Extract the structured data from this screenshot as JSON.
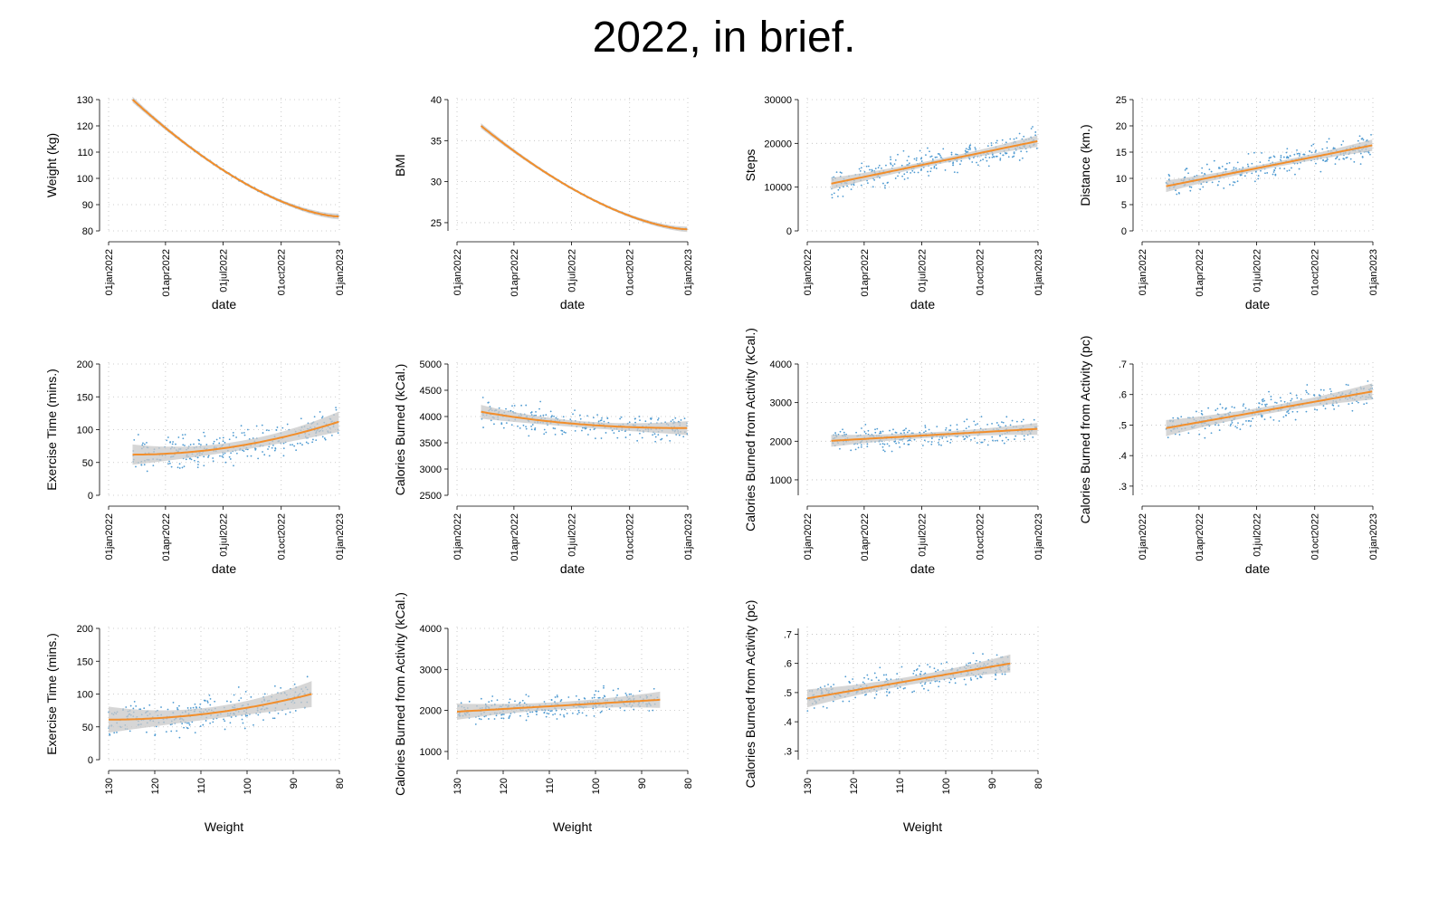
{
  "title": "2022, in brief.",
  "colors": {
    "fit": "#f28e2b",
    "points": "#4e9ad1",
    "band": "#c8c8c8",
    "grid": "#bdbdbd",
    "axis": "#000000"
  },
  "chart_data": [
    {
      "type": "scatter",
      "ylabel": "Weight (kg)",
      "xlabel": "date",
      "xaxis": "date",
      "xlim": [
        "2022-01-01",
        "2023-01-01"
      ],
      "ylim": [
        80,
        130
      ],
      "xticks": [
        "01jan2022",
        "01apr2022",
        "01jul2022",
        "01oct2022",
        "01jan2023"
      ],
      "yticks": [
        "80",
        "90",
        "100",
        "110",
        "120",
        "130"
      ],
      "x_start": "2022-02-08",
      "x_end": "2022-12-31",
      "y_start": 130,
      "y_end": 85.5,
      "trend": "decay",
      "spread": 0.8,
      "points": "line",
      "band": 0.5,
      "grid": true
    },
    {
      "type": "scatter",
      "ylabel": "BMI",
      "xlabel": "date",
      "xaxis": "date",
      "xlim": [
        "2022-01-01",
        "2023-01-01"
      ],
      "ylim": [
        24,
        40
      ],
      "xticks": [
        "01jan2022",
        "01apr2022",
        "01jul2022",
        "01oct2022",
        "01jan2023"
      ],
      "yticks": [
        "25",
        "30",
        "35",
        "40"
      ],
      "x_start": "2022-02-08",
      "x_end": "2022-12-31",
      "y_start": 36.8,
      "y_end": 24.2,
      "trend": "decay",
      "spread": 0.2,
      "points": "line",
      "band": 0.15,
      "grid": true
    },
    {
      "type": "scatter",
      "ylabel": "Steps",
      "xlabel": "date",
      "xaxis": "date",
      "xlim": [
        "2022-01-01",
        "2023-01-01"
      ],
      "ylim": [
        0,
        30000
      ],
      "xticks": [
        "01jan2022",
        "01apr2022",
        "01jul2022",
        "01oct2022",
        "01jan2023"
      ],
      "yticks": [
        "0",
        "10000",
        "20000",
        "30000"
      ],
      "x_start": "2022-02-08",
      "x_end": "2022-12-31",
      "y_start": 10800,
      "y_end": 20500,
      "trend": "linear",
      "spread": 4000,
      "points": "scatter",
      "band": 600,
      "grid": true
    },
    {
      "type": "scatter",
      "ylabel": "Distance (km.)",
      "xlabel": "date",
      "xaxis": "date",
      "xlim": [
        "2022-01-01",
        "2023-01-01"
      ],
      "ylim": [
        0,
        25
      ],
      "xticks": [
        "01jan2022",
        "01apr2022",
        "01jul2022",
        "01oct2022",
        "01jan2023"
      ],
      "yticks": [
        "0",
        "5",
        "10",
        "15",
        "20",
        "25"
      ],
      "x_start": "2022-02-08",
      "x_end": "2022-12-31",
      "y_start": 8.5,
      "y_end": 16.3,
      "trend": "linear",
      "spread": 3.2,
      "points": "scatter",
      "band": 0.5,
      "grid": true
    },
    {
      "type": "scatter",
      "ylabel": "Exercise Time (mins.)",
      "xlabel": "date",
      "xaxis": "date",
      "xlim": [
        "2022-01-01",
        "2023-01-01"
      ],
      "ylim": [
        0,
        200
      ],
      "xticks": [
        "01jan2022",
        "01apr2022",
        "01jul2022",
        "01oct2022",
        "01jan2023"
      ],
      "yticks": [
        "0",
        "50",
        "100",
        "150",
        "200"
      ],
      "x_start": "2022-02-08",
      "x_end": "2022-12-31",
      "y_start": 62,
      "y_end": 112,
      "trend": "convex",
      "spread": 32,
      "points": "scatter",
      "band": 7,
      "grid": true
    },
    {
      "type": "scatter",
      "ylabel": "Calories Burned (kCal.)",
      "xlabel": "date",
      "xaxis": "date",
      "xlim": [
        "2022-01-01",
        "2023-01-01"
      ],
      "ylim": [
        2500,
        5000
      ],
      "xticks": [
        "01jan2022",
        "01apr2022",
        "01jul2022",
        "01oct2022",
        "01jan2023"
      ],
      "yticks": [
        "2500",
        "3000",
        "3500",
        "4000",
        "4500",
        "5000"
      ],
      "x_start": "2022-02-08",
      "x_end": "2022-12-31",
      "y_start": 4090,
      "y_end": 3780,
      "trend": "concave-down",
      "spread": 320,
      "points": "scatter",
      "band": 60,
      "grid": true
    },
    {
      "type": "scatter",
      "ylabel": "Calories Burned from Activity (kCal.)",
      "xlabel": "date",
      "xaxis": "date",
      "xlim": [
        "2022-01-01",
        "2023-01-01"
      ],
      "ylim": [
        600,
        4000
      ],
      "xticks": [
        "01jan2022",
        "01apr2022",
        "01jul2022",
        "01oct2022",
        "01jan2023"
      ],
      "yticks": [
        "1000",
        "2000",
        "3000",
        "4000"
      ],
      "x_start": "2022-02-08",
      "x_end": "2022-12-31",
      "y_start": 2010,
      "y_end": 2320,
      "trend": "linear",
      "spread": 380,
      "points": "scatter",
      "band": 70,
      "grid": true
    },
    {
      "type": "scatter",
      "ylabel": "Calories Burned from Activity (pc)",
      "xlabel": "date",
      "xaxis": "date",
      "xlim": [
        "2022-01-01",
        "2023-01-01"
      ],
      "ylim": [
        0.27,
        0.7
      ],
      "xticks": [
        "01jan2022",
        "01apr2022",
        "01jul2022",
        "01oct2022",
        "01jan2023"
      ],
      "yticks": [
        ".3",
        ".4",
        ".5",
        ".6",
        ".7"
      ],
      "x_start": "2022-02-08",
      "x_end": "2022-12-31",
      "y_start": 0.49,
      "y_end": 0.61,
      "trend": "linear",
      "spread": 0.055,
      "points": "scatter",
      "band": 0.012,
      "grid": true
    },
    {
      "type": "scatter",
      "ylabel": "Exercise Time (mins.)",
      "xlabel": "Weight",
      "xaxis": "reversed",
      "xlim": [
        130,
        80
      ],
      "ylim": [
        0,
        200
      ],
      "xticks": [
        "130",
        "120",
        "110",
        "100",
        "90",
        "80"
      ],
      "yticks": [
        "0",
        "50",
        "100",
        "150",
        "200"
      ],
      "x_start": 130,
      "x_end": 86,
      "y_start": 61,
      "y_end": 100,
      "trend": "convex",
      "spread": 32,
      "points": "scatter",
      "band": 9,
      "grid": true
    },
    {
      "type": "scatter",
      "ylabel": "Calories Burned from Activity (kCal.)",
      "xlabel": "Weight",
      "xaxis": "reversed",
      "xlim": [
        130,
        80
      ],
      "ylim": [
        800,
        4000
      ],
      "xticks": [
        "130",
        "120",
        "110",
        "100",
        "90",
        "80"
      ],
      "yticks": [
        "1000",
        "2000",
        "3000",
        "4000"
      ],
      "x_start": 130,
      "x_end": 86,
      "y_start": 1970,
      "y_end": 2260,
      "trend": "linear",
      "spread": 380,
      "points": "scatter",
      "band": 90,
      "grid": true
    },
    {
      "type": "scatter",
      "ylabel": "Calories Burned from Activity (pc)",
      "xlabel": "Weight",
      "xaxis": "reversed",
      "xlim": [
        130,
        80
      ],
      "ylim": [
        0.27,
        0.72
      ],
      "xticks": [
        "130",
        "120",
        "110",
        "100",
        "90",
        "80"
      ],
      "yticks": [
        ".3",
        ".4",
        ".5",
        ".6",
        ".7"
      ],
      "x_start": 130,
      "x_end": 86,
      "y_start": 0.48,
      "y_end": 0.6,
      "trend": "linear",
      "spread": 0.055,
      "points": "scatter",
      "band": 0.014,
      "grid": true
    }
  ]
}
